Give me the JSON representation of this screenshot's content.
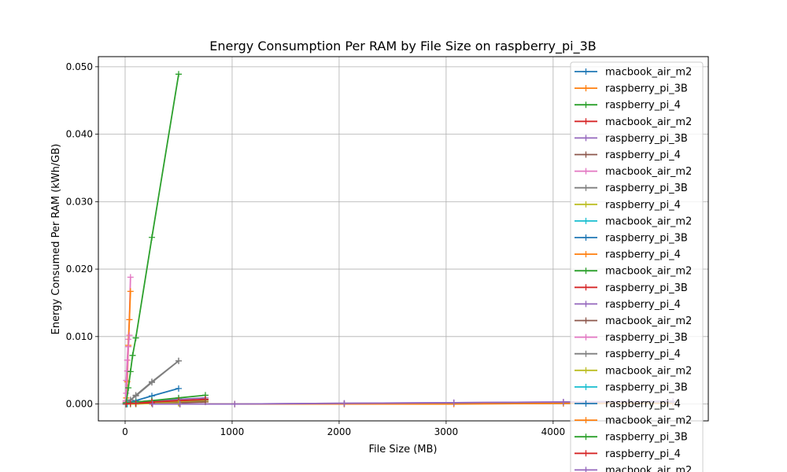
{
  "chart_data": {
    "type": "line",
    "title": "Energy Consumption Per RAM by File Size on raspberry_pi_3B",
    "xlabel": "File Size (MB)",
    "ylabel": "Energy Consumed Per RAM (kWh/GB)",
    "xlim": [
      -250,
      5450
    ],
    "ylim": [
      -0.0025,
      0.0515
    ],
    "xticks": [
      0,
      1000,
      2000,
      3000,
      4000
    ],
    "xtick_labels": [
      "0",
      "1000",
      "2000",
      "3000",
      "4000"
    ],
    "yticks": [
      0.0,
      0.01,
      0.02,
      0.03,
      0.04,
      0.05
    ],
    "ytick_labels": [
      "0.000",
      "0.010",
      "0.020",
      "0.030",
      "0.040",
      "0.050"
    ],
    "grid": true,
    "legend_position": "upper-right",
    "series": [
      {
        "name": "macbook_air_m2",
        "color": "#1f77b4",
        "x": [
          5,
          10,
          20,
          50,
          100
        ],
        "y": [
          0.0,
          0.0,
          0.0,
          0.0,
          0.0
        ]
      },
      {
        "name": "raspberry_pi_3B",
        "color": "#ff7f0e",
        "x": [
          5,
          10,
          20,
          50,
          100
        ],
        "y": [
          0.0001,
          0.0001,
          0.0001,
          0.0001,
          0.0001
        ]
      },
      {
        "name": "raspberry_pi_4",
        "color": "#2ca02c",
        "x": [
          5,
          10,
          20,
          50,
          100
        ],
        "y": [
          0.0,
          0.0,
          0.0,
          0.0001,
          0.0001
        ]
      },
      {
        "name": "macbook_air_m2",
        "color": "#d62728",
        "x": [
          10,
          50,
          100,
          250,
          500,
          750
        ],
        "y": [
          0.0,
          0.0001,
          0.0001,
          0.0002,
          0.0003,
          0.0004
        ]
      },
      {
        "name": "raspberry_pi_3B",
        "color": "#9467bd",
        "x": [
          10,
          50,
          100,
          250,
          500,
          750
        ],
        "y": [
          0.0001,
          0.0002,
          0.0003,
          0.0005,
          0.0007,
          0.0009
        ]
      },
      {
        "name": "raspberry_pi_4",
        "color": "#8c564b",
        "x": [
          10,
          50,
          100,
          250,
          500,
          750
        ],
        "y": [
          0.0,
          0.0001,
          0.0002,
          0.0003,
          0.0005,
          0.0006
        ]
      },
      {
        "name": "macbook_air_m2",
        "color": "#e377c2",
        "x": [
          5,
          10,
          20,
          30,
          40,
          50
        ],
        "y": [
          0.0005,
          0.0035,
          0.0065,
          0.0096,
          0.0125,
          0.0188
        ]
      },
      {
        "name": "raspberry_pi_3B",
        "color": "#7f7f7f",
        "x": [
          10,
          50,
          100,
          250,
          500
        ],
        "y": [
          0.0002,
          0.0006,
          0.0013,
          0.0033,
          0.0064
        ]
      },
      {
        "name": "raspberry_pi_4",
        "color": "#bcbd22",
        "x": [
          10,
          50,
          100,
          250,
          500,
          750
        ],
        "y": [
          0.0,
          0.0001,
          0.0001,
          0.0002,
          0.0003,
          0.0004
        ]
      },
      {
        "name": "macbook_air_m2",
        "color": "#17becf",
        "x": [
          5,
          10,
          20,
          50,
          100
        ],
        "y": [
          0.0,
          0.0,
          0.0,
          0.0,
          0.0
        ]
      },
      {
        "name": "raspberry_pi_3B",
        "color": "#1f77b4",
        "x": [
          10,
          50,
          100,
          250,
          500
        ],
        "y": [
          0.0001,
          0.0003,
          0.0005,
          0.0012,
          0.0023
        ]
      },
      {
        "name": "raspberry_pi_4",
        "color": "#ff7f0e",
        "x": [
          5,
          10,
          20,
          30,
          40,
          50
        ],
        "y": [
          0.0002,
          0.0009,
          0.0033,
          0.0087,
          0.0125,
          0.0167
        ]
      },
      {
        "name": "macbook_air_m2",
        "color": "#2ca02c",
        "x": [
          10,
          50,
          100,
          250,
          500,
          750
        ],
        "y": [
          0.0001,
          0.0002,
          0.0003,
          0.0005,
          0.0009,
          0.0013
        ]
      },
      {
        "name": "raspberry_pi_3B",
        "color": "#d62728",
        "x": [
          10,
          50,
          100,
          250,
          500,
          750
        ],
        "y": [
          0.0,
          0.0001,
          0.0001,
          0.0003,
          0.0005,
          0.0007
        ]
      },
      {
        "name": "raspberry_pi_4",
        "color": "#9467bd",
        "x": [
          256,
          512,
          1024,
          2048,
          3072,
          4096,
          5120
        ],
        "y": [
          0.0,
          0.0,
          0.0,
          0.0001,
          0.0002,
          0.0003,
          0.0004
        ]
      },
      {
        "name": "macbook_air_m2",
        "color": "#8c564b",
        "x": [
          10,
          50,
          100,
          250,
          500,
          750
        ],
        "y": [
          0.0,
          0.0,
          0.0001,
          0.0001,
          0.0002,
          0.0003
        ]
      },
      {
        "name": "raspberry_pi_3B",
        "color": "#e377c2",
        "x": [
          5,
          10,
          20,
          30,
          40
        ],
        "y": [
          0.0003,
          0.0016,
          0.0049,
          0.0085,
          0.0102
        ]
      },
      {
        "name": "raspberry_pi_4",
        "color": "#7f7f7f",
        "x": [
          10,
          50,
          100,
          250,
          500
        ],
        "y": [
          0.0001,
          0.0006,
          0.0012,
          0.0032,
          0.0064
        ]
      },
      {
        "name": "macbook_air_m2",
        "color": "#bcbd22",
        "x": [
          10,
          50,
          100,
          250,
          500
        ],
        "y": [
          0.0,
          0.0,
          0.0,
          0.0001,
          0.0001
        ]
      },
      {
        "name": "raspberry_pi_3B",
        "color": "#17becf",
        "x": [
          5,
          10,
          20,
          50,
          100
        ],
        "y": [
          0.0,
          0.0001,
          0.0001,
          0.0001,
          0.0002
        ]
      },
      {
        "name": "raspberry_pi_4",
        "color": "#1f77b4",
        "x": [
          256,
          512,
          1024,
          2048,
          3072,
          4096,
          5120
        ],
        "y": [
          0.0,
          0.0,
          0.0,
          0.0,
          0.0001,
          0.0001,
          0.0002
        ]
      },
      {
        "name": "macbook_air_m2",
        "color": "#ff7f0e",
        "x": [
          256,
          512,
          1024,
          2048,
          3072,
          4096,
          5120
        ],
        "y": [
          0.0,
          0.0,
          0.0,
          0.0,
          0.0,
          0.0001,
          0.0001
        ]
      },
      {
        "name": "raspberry_pi_3B",
        "color": "#2ca02c",
        "x": [
          10,
          30,
          50,
          70,
          100,
          250,
          500
        ],
        "y": [
          0.0002,
          0.0024,
          0.0048,
          0.0072,
          0.0098,
          0.0247,
          0.0489
        ]
      },
      {
        "name": "raspberry_pi_4",
        "color": "#d62728",
        "x": [
          10,
          50,
          100,
          250
        ],
        "y": [
          0.0,
          0.0001,
          0.0001,
          0.0002
        ]
      },
      {
        "name": "macbook_air_m2",
        "color": "#9467bd",
        "x": [
          256,
          512,
          1024,
          2048,
          3072,
          4096,
          5120
        ],
        "y": [
          0.0,
          0.0,
          0.0,
          0.0001,
          0.0002,
          0.0003,
          0.0004
        ]
      }
    ]
  }
}
